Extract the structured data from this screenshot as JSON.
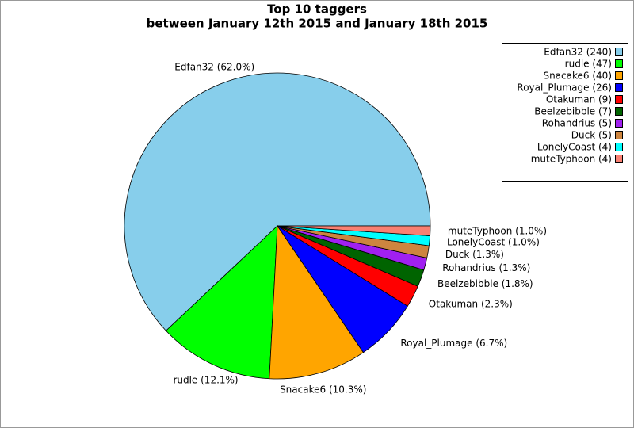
{
  "chart_data": {
    "type": "pie",
    "title": "Top 10 taggers",
    "subtitle": "between January 12th 2015 and January 18th 2015",
    "values": [
      240,
      47,
      40,
      26,
      9,
      7,
      5,
      5,
      4,
      4
    ],
    "legend_labels": [
      "Edfan32 (240)",
      "rudle (47)",
      "Snacake6 (40)",
      "Royal_Plumage (26)",
      "Otakuman (9)",
      "Beelzebibble (7)",
      "Rohandrius (5)",
      "Duck (5)",
      "LonelyCoast (4)",
      "muteTyphoon (4)"
    ],
    "percents": [
      62.0,
      12.1,
      10.3,
      6.7,
      2.3,
      1.8,
      1.3,
      1.3,
      1.0,
      1.0
    ],
    "percent_labels": [
      "Edfan32 (62.0%)",
      "rudle (12.1%)",
      "Snacake6 (10.3%)",
      "Royal_Plumage (6.7%)",
      "Otakuman (2.3%)",
      "Beelzebibble (1.8%)",
      "Rohandrius (1.3%)",
      "Duck (1.3%)",
      "LonelyCoast (1.0%)",
      "muteTyphoon (1.0%)"
    ],
    "colors": [
      "#87ceeb",
      "#00ff00",
      "#ffa500",
      "#0000ff",
      "#ff0000",
      "#006400",
      "#a020f0",
      "#cd853f",
      "#00ffff",
      "#fa8072"
    ],
    "legend": "upper right"
  }
}
